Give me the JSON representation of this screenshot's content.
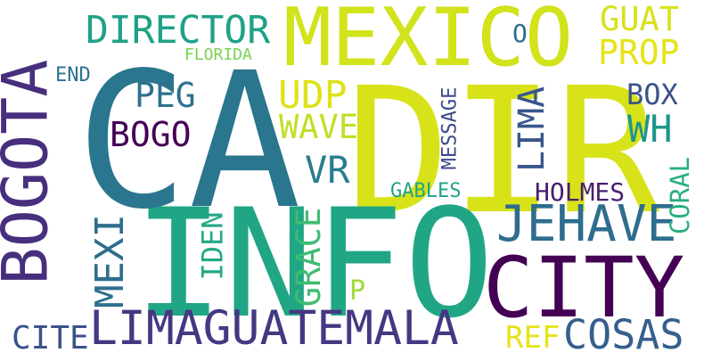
{
  "words": [
    {
      "text": "DIR",
      "color": "#d8e219"
    },
    {
      "text": "INFO",
      "color": "#21a685"
    },
    {
      "text": "CA",
      "color": "#2a768e"
    },
    {
      "text": "MEXICO",
      "color": "#d2e21b"
    },
    {
      "text": "BOGOTA",
      "color": "#472f7d"
    },
    {
      "text": "CITY",
      "color": "#440154"
    },
    {
      "text": "LIMAGUATEMALA",
      "color": "#453882"
    },
    {
      "text": "JEHAVE",
      "color": "#2e6d8e"
    },
    {
      "text": "DIRECTOR",
      "color": "#1fa187"
    },
    {
      "text": "COSAS",
      "color": "#355f8d"
    },
    {
      "text": "MEXI",
      "color": "#2e6e8e"
    },
    {
      "text": "GRACE",
      "color": "#3fbc73"
    },
    {
      "text": "LIMA",
      "color": "#39568c"
    },
    {
      "text": "UDP",
      "color": "#dde318"
    },
    {
      "text": "PEG",
      "color": "#2d718e"
    },
    {
      "text": "BOGO",
      "color": "#440154"
    },
    {
      "text": "VR",
      "color": "#287d8e"
    },
    {
      "text": "WAVE",
      "color": "#c0df25"
    },
    {
      "text": "WH",
      "color": "#1f968b"
    },
    {
      "text": "GUAT",
      "color": "#d8e219"
    },
    {
      "text": "PROP",
      "color": "#e5e419"
    },
    {
      "text": "BOX",
      "color": "#3b528b"
    },
    {
      "text": "O",
      "color": "#2f6c8e"
    },
    {
      "text": "HOLMES",
      "color": "#481f70"
    },
    {
      "text": "CORAL",
      "color": "#29af7f"
    },
    {
      "text": "IDEN",
      "color": "#22a884"
    },
    {
      "text": "CITE",
      "color": "#3b528b"
    },
    {
      "text": "REF",
      "color": "#e5e419"
    },
    {
      "text": "P",
      "color": "#a0da39"
    },
    {
      "text": "MESSAGE",
      "color": "#3e4a89"
    },
    {
      "text": "GABLES",
      "color": "#20a386"
    },
    {
      "text": "END",
      "color": "#2c728e"
    },
    {
      "text": "FLORIDA",
      "color": "#7ad151"
    }
  ]
}
